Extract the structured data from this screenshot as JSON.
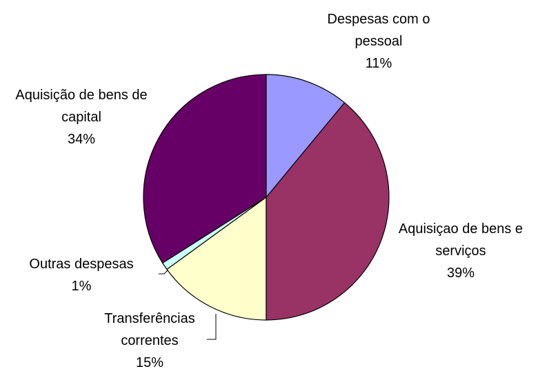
{
  "chart_data": {
    "type": "pie",
    "categories": [
      "Despesas com o pessoal",
      "Aquisiçao de bens e serviços",
      "Transferências correntes",
      "Outras despesas",
      "Aquisição de bens de capital"
    ],
    "values": [
      11,
      39,
      15,
      1,
      34
    ],
    "value_labels": [
      "11%",
      "39%",
      "15%",
      "1%",
      "34%"
    ],
    "colors": [
      "#9999ff",
      "#993366",
      "#ffffcc",
      "#ccffff",
      "#660066"
    ]
  }
}
